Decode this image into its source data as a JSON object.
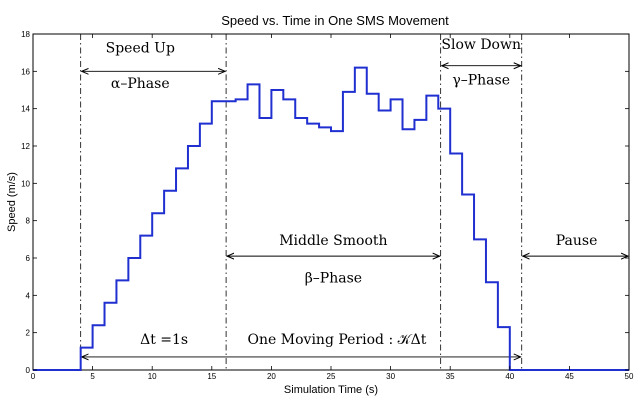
{
  "chart_data": {
    "type": "line",
    "title": "Speed vs. Time in One SMS Movement",
    "xlabel": "Simulation Time (s)",
    "ylabel": "Speed (m/s)",
    "xlim": [
      0,
      50
    ],
    "ylim": [
      0,
      18
    ],
    "xticks": [
      0,
      5,
      10,
      15,
      20,
      25,
      30,
      35,
      40,
      45,
      50
    ],
    "yticks": [
      0,
      2,
      4,
      6,
      8,
      10,
      12,
      14,
      16,
      18
    ],
    "grid": false,
    "step": "post",
    "series": [
      {
        "color": "#1f2fd0",
        "x": [
          0,
          4,
          5,
          6,
          7,
          8,
          9,
          10,
          11,
          12,
          13,
          14,
          15,
          16,
          17,
          18,
          19,
          20,
          21,
          22,
          23,
          24,
          25,
          26,
          27,
          28,
          29,
          30,
          31,
          32,
          33,
          34,
          35,
          36,
          37,
          38,
          39,
          40,
          41,
          50
        ],
        "y": [
          0,
          1.2,
          2.4,
          3.6,
          4.8,
          6.0,
          7.2,
          8.4,
          9.6,
          10.8,
          12.0,
          13.2,
          14.4,
          14.4,
          14.5,
          15.3,
          13.5,
          15.0,
          14.5,
          13.5,
          13.2,
          13.0,
          12.8,
          14.9,
          16.2,
          14.8,
          13.9,
          14.5,
          12.9,
          13.4,
          14.7,
          14.0,
          11.6,
          9.4,
          7.0,
          4.7,
          2.3,
          0,
          0,
          0
        ]
      }
    ],
    "vlines": [
      {
        "x": 4,
        "style": "dash-dot"
      },
      {
        "x": 16.2,
        "style": "dash-dot"
      },
      {
        "x": 34.2,
        "style": "dash-dot"
      },
      {
        "x": 41.0,
        "style": "dash-dot"
      }
    ],
    "arrows": [
      {
        "x1": 4,
        "x2": 16.2,
        "y": 16.0
      },
      {
        "x1": 34.2,
        "x2": 41.0,
        "y": 16.3
      },
      {
        "x1": 16.2,
        "x2": 34.2,
        "y": 6.1
      },
      {
        "x1": 41.0,
        "x2": 50,
        "y": 6.1
      },
      {
        "x1": 4,
        "x2": 41.0,
        "y": 0.7
      }
    ],
    "annotations": [
      {
        "text": "Speed Up",
        "x": 9.0,
        "y": 17.0
      },
      {
        "text": "α–Phase",
        "x": 9.0,
        "y": 15.1
      },
      {
        "text": "Slow Down",
        "x": 37.6,
        "y": 17.2
      },
      {
        "text": "γ–Phase",
        "x": 37.6,
        "y": 15.3
      },
      {
        "text": "Middle Smooth",
        "x": 25.2,
        "y": 6.7
      },
      {
        "text": "β–Phase",
        "x": 25.2,
        "y": 4.7
      },
      {
        "text": "Pause",
        "x": 45.6,
        "y": 6.7
      },
      {
        "text": "Δt =1s",
        "x": 11.0,
        "y": 1.4
      },
      {
        "text": "One Moving Period : 𝒦Δt",
        "x": 25.5,
        "y": 1.4
      }
    ]
  }
}
